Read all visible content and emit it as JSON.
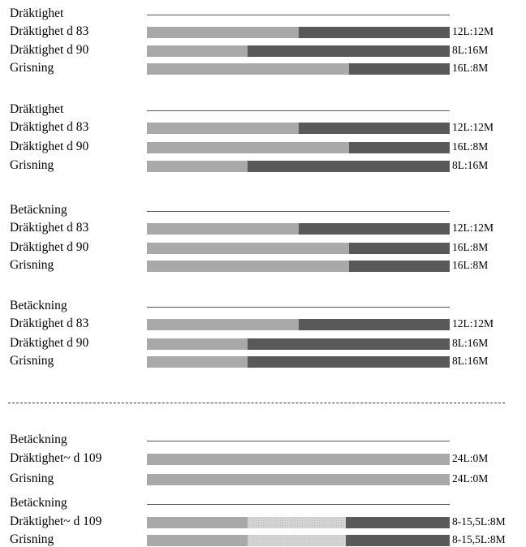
{
  "colors": {
    "light_segment": "#a9a9a9",
    "dark_segment": "#595959",
    "variable_segment": "#d4d4d4"
  },
  "groups": [
    {
      "header": "Dräktighet",
      "rows": [
        {
          "label": "Dräktighet d 83",
          "ratio": "12L:12M",
          "segments": [
            {
              "type": "L",
              "fraction": 0.5
            },
            {
              "type": "M",
              "fraction": 0.5
            }
          ]
        },
        {
          "label": "Dräktighet d 90",
          "ratio": "8L:16M",
          "segments": [
            {
              "type": "L",
              "fraction": 0.333
            },
            {
              "type": "M",
              "fraction": 0.667
            }
          ]
        },
        {
          "label": "Grisning",
          "ratio": "16L:8M",
          "segments": [
            {
              "type": "L",
              "fraction": 0.667
            },
            {
              "type": "M",
              "fraction": 0.333
            }
          ]
        }
      ]
    },
    {
      "header": "Dräktighet",
      "rows": [
        {
          "label": "Dräktighet d 83",
          "ratio": "12L:12M",
          "segments": [
            {
              "type": "L",
              "fraction": 0.5
            },
            {
              "type": "M",
              "fraction": 0.5
            }
          ]
        },
        {
          "label": "Dräktighet d 90",
          "ratio": "16L:8M",
          "segments": [
            {
              "type": "L",
              "fraction": 0.667
            },
            {
              "type": "M",
              "fraction": 0.333
            }
          ]
        },
        {
          "label": "Grisning",
          "ratio": "8L:16M",
          "segments": [
            {
              "type": "L",
              "fraction": 0.333
            },
            {
              "type": "M",
              "fraction": 0.667
            }
          ]
        }
      ]
    },
    {
      "header": "Betäckning",
      "rows": [
        {
          "label": "Dräktighet d 83",
          "ratio": "12L:12M",
          "segments": [
            {
              "type": "L",
              "fraction": 0.5
            },
            {
              "type": "M",
              "fraction": 0.5
            }
          ]
        },
        {
          "label": "Dräktighet d 90",
          "ratio": "16L:8M",
          "segments": [
            {
              "type": "L",
              "fraction": 0.667
            },
            {
              "type": "M",
              "fraction": 0.333
            }
          ]
        },
        {
          "label": "Grisning",
          "ratio": "16L:8M",
          "segments": [
            {
              "type": "L",
              "fraction": 0.667
            },
            {
              "type": "M",
              "fraction": 0.333
            }
          ]
        }
      ]
    },
    {
      "header": "Betäckning",
      "rows": [
        {
          "label": "Dräktighet d 83",
          "ratio": "12L:12M",
          "segments": [
            {
              "type": "L",
              "fraction": 0.5
            },
            {
              "type": "M",
              "fraction": 0.5
            }
          ]
        },
        {
          "label": "Dräktighet d 90",
          "ratio": "8L:16M",
          "segments": [
            {
              "type": "L",
              "fraction": 0.333
            },
            {
              "type": "M",
              "fraction": 0.667
            }
          ]
        },
        {
          "label": "Grisning",
          "ratio": "8L:16M",
          "segments": [
            {
              "type": "L",
              "fraction": 0.333
            },
            {
              "type": "M",
              "fraction": 0.667
            }
          ]
        }
      ]
    },
    {
      "header": "Betäckning",
      "rows": [
        {
          "label": "Dräktighet~ d 109",
          "ratio": "24L:0M",
          "segments": [
            {
              "type": "L",
              "fraction": 1.0
            }
          ]
        },
        {
          "label": "Grisning",
          "ratio": "24L:0M",
          "segments": [
            {
              "type": "L",
              "fraction": 1.0
            }
          ]
        }
      ]
    },
    {
      "header": "Betäckning",
      "rows": [
        {
          "label": "Dräktighet~ d 109",
          "ratio": "8-15,5L:8M",
          "segments": [
            {
              "type": "L",
              "fraction": 0.333
            },
            {
              "type": "V",
              "fraction": 0.323
            },
            {
              "type": "M",
              "fraction": 0.344
            }
          ]
        },
        {
          "label": "Grisning",
          "ratio": "8-15,5L:8M",
          "segments": [
            {
              "type": "L",
              "fraction": 0.333
            },
            {
              "type": "V",
              "fraction": 0.323
            },
            {
              "type": "M",
              "fraction": 0.344
            }
          ]
        }
      ]
    }
  ]
}
